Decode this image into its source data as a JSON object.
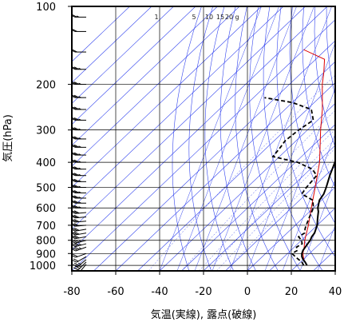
{
  "chart_data": {
    "type": "line",
    "title": "",
    "xlabel": "気温(実線), 露点(破線)",
    "ylabel": "気圧(hPa)",
    "x_ticks": [
      -80,
      -60,
      -40,
      -20,
      0,
      20,
      40
    ],
    "y_ticks": [
      100,
      200,
      300,
      400,
      500,
      600,
      700,
      800,
      900,
      1000
    ],
    "xlim": [
      -80,
      40
    ],
    "ylim": [
      1050,
      100
    ],
    "y_scale": "log",
    "grid": true,
    "mixing_ratio_labels": [
      "1",
      "5",
      "10",
      "15",
      "20",
      "g"
    ],
    "colors": {
      "temperature": "#000000",
      "dewpoint": "#000000",
      "parcel": "#dd0000",
      "isotherm": "#3344ee",
      "grid": "#000000",
      "wind": "#000000"
    },
    "temperature": [
      {
        "p": 1000,
        "t": 24.5
      },
      {
        "p": 970,
        "t": 22
      },
      {
        "p": 950,
        "t": 20
      },
      {
        "p": 925,
        "t": 18
      },
      {
        "p": 900,
        "t": 16.5
      },
      {
        "p": 875,
        "t": 15.5
      },
      {
        "p": 850,
        "t": 15
      },
      {
        "p": 825,
        "t": 14.5
      },
      {
        "p": 800,
        "t": 14
      },
      {
        "p": 775,
        "t": 13
      },
      {
        "p": 750,
        "t": 12.5
      },
      {
        "p": 720,
        "t": 11
      },
      {
        "p": 700,
        "t": 10
      },
      {
        "p": 660,
        "t": 7
      },
      {
        "p": 620,
        "t": 4
      },
      {
        "p": 600,
        "t": 2
      },
      {
        "p": 560,
        "t": -1
      },
      {
        "p": 530,
        "t": -2
      },
      {
        "p": 500,
        "t": -4
      },
      {
        "p": 450,
        "t": -8
      },
      {
        "p": 400,
        "t": -12
      },
      {
        "p": 350,
        "t": -18
      },
      {
        "p": 300,
        "t": -25
      },
      {
        "p": 250,
        "t": -33
      },
      {
        "p": 225,
        "t": -37
      },
      {
        "p": 200,
        "t": -42
      },
      {
        "p": 175,
        "t": -48
      },
      {
        "p": 150,
        "t": -55
      },
      {
        "p": 125,
        "t": -62
      },
      {
        "p": 110,
        "t": -67
      },
      {
        "p": 100,
        "t": -72
      }
    ],
    "dewpoint": [
      {
        "p": 1000,
        "t": 23
      },
      {
        "p": 970,
        "t": 20.5
      },
      {
        "p": 950,
        "t": 18
      },
      {
        "p": 925,
        "t": 15
      },
      {
        "p": 900,
        "t": 12
      },
      {
        "p": 875,
        "t": 13
      },
      {
        "p": 850,
        "t": 11
      },
      {
        "p": 825,
        "t": 12
      },
      {
        "p": 800,
        "t": 10
      },
      {
        "p": 775,
        "t": 7
      },
      {
        "p": 750,
        "t": 8
      },
      {
        "p": 720,
        "t": 6
      },
      {
        "p": 700,
        "t": 5
      },
      {
        "p": 660,
        "t": 3
      },
      {
        "p": 600,
        "t": 0
      },
      {
        "p": 560,
        "t": -4
      },
      {
        "p": 530,
        "t": -12
      },
      {
        "p": 500,
        "t": -13
      },
      {
        "p": 450,
        "t": -14
      },
      {
        "p": 425,
        "t": -19
      },
      {
        "p": 410,
        "t": -25
      },
      {
        "p": 400,
        "t": -29
      },
      {
        "p": 390,
        "t": -36
      },
      {
        "p": 380,
        "t": -43
      },
      {
        "p": 350,
        "t": -44
      },
      {
        "p": 330,
        "t": -45
      },
      {
        "p": 300,
        "t": -44
      },
      {
        "p": 275,
        "t": -42
      },
      {
        "p": 250,
        "t": -48
      },
      {
        "p": 235,
        "t": -60
      },
      {
        "p": 225,
        "t": -75
      }
    ],
    "parcel": [
      {
        "p": 1000,
        "t": 24.5
      },
      {
        "p": 960,
        "t": 21
      },
      {
        "p": 930,
        "t": 19
      },
      {
        "p": 900,
        "t": 17
      },
      {
        "p": 850,
        "t": 14.5
      },
      {
        "p": 800,
        "t": 11.5
      },
      {
        "p": 700,
        "t": 6
      },
      {
        "p": 600,
        "t": -1
      },
      {
        "p": 500,
        "t": -9
      },
      {
        "p": 400,
        "t": -19
      },
      {
        "p": 300,
        "t": -34
      },
      {
        "p": 250,
        "t": -43
      },
      {
        "p": 200,
        "t": -55
      },
      {
        "p": 180,
        "t": -60
      },
      {
        "p": 160,
        "t": -66
      },
      {
        "p": 147,
        "t": -80
      }
    ],
    "wind_levels": [
      {
        "p": 990,
        "dir": 220,
        "spd": 10
      },
      {
        "p": 970,
        "dir": 225,
        "spd": 15
      },
      {
        "p": 950,
        "dir": 230,
        "spd": 15
      },
      {
        "p": 925,
        "dir": 240,
        "spd": 20
      },
      {
        "p": 900,
        "dir": 250,
        "spd": 20
      },
      {
        "p": 850,
        "dir": 250,
        "spd": 25
      },
      {
        "p": 825,
        "dir": 255,
        "spd": 25
      },
      {
        "p": 800,
        "dir": 255,
        "spd": 25
      },
      {
        "p": 775,
        "dir": 260,
        "spd": 30
      },
      {
        "p": 750,
        "dir": 260,
        "spd": 30
      },
      {
        "p": 725,
        "dir": 260,
        "spd": 30
      },
      {
        "p": 700,
        "dir": 265,
        "spd": 30
      },
      {
        "p": 675,
        "dir": 265,
        "spd": 30
      },
      {
        "p": 650,
        "dir": 265,
        "spd": 30
      },
      {
        "p": 625,
        "dir": 265,
        "spd": 30
      },
      {
        "p": 600,
        "dir": 270,
        "spd": 25
      },
      {
        "p": 575,
        "dir": 270,
        "spd": 25
      },
      {
        "p": 550,
        "dir": 270,
        "spd": 25
      },
      {
        "p": 525,
        "dir": 270,
        "spd": 25
      },
      {
        "p": 500,
        "dir": 270,
        "spd": 25
      },
      {
        "p": 475,
        "dir": 270,
        "spd": 25
      },
      {
        "p": 450,
        "dir": 270,
        "spd": 25
      },
      {
        "p": 425,
        "dir": 270,
        "spd": 25
      },
      {
        "p": 400,
        "dir": 270,
        "spd": 25
      },
      {
        "p": 375,
        "dir": 270,
        "spd": 25
      },
      {
        "p": 350,
        "dir": 270,
        "spd": 25
      },
      {
        "p": 325,
        "dir": 270,
        "spd": 25
      },
      {
        "p": 300,
        "dir": 270,
        "spd": 25
      },
      {
        "p": 275,
        "dir": 270,
        "spd": 25
      },
      {
        "p": 250,
        "dir": 270,
        "spd": 25
      },
      {
        "p": 225,
        "dir": 270,
        "spd": 25
      },
      {
        "p": 200,
        "dir": 270,
        "spd": 25
      },
      {
        "p": 175,
        "dir": 270,
        "spd": 25
      },
      {
        "p": 150,
        "dir": 270,
        "spd": 20
      },
      {
        "p": 125,
        "dir": 270,
        "spd": 20
      },
      {
        "p": 110,
        "dir": 270,
        "spd": 15
      }
    ]
  }
}
